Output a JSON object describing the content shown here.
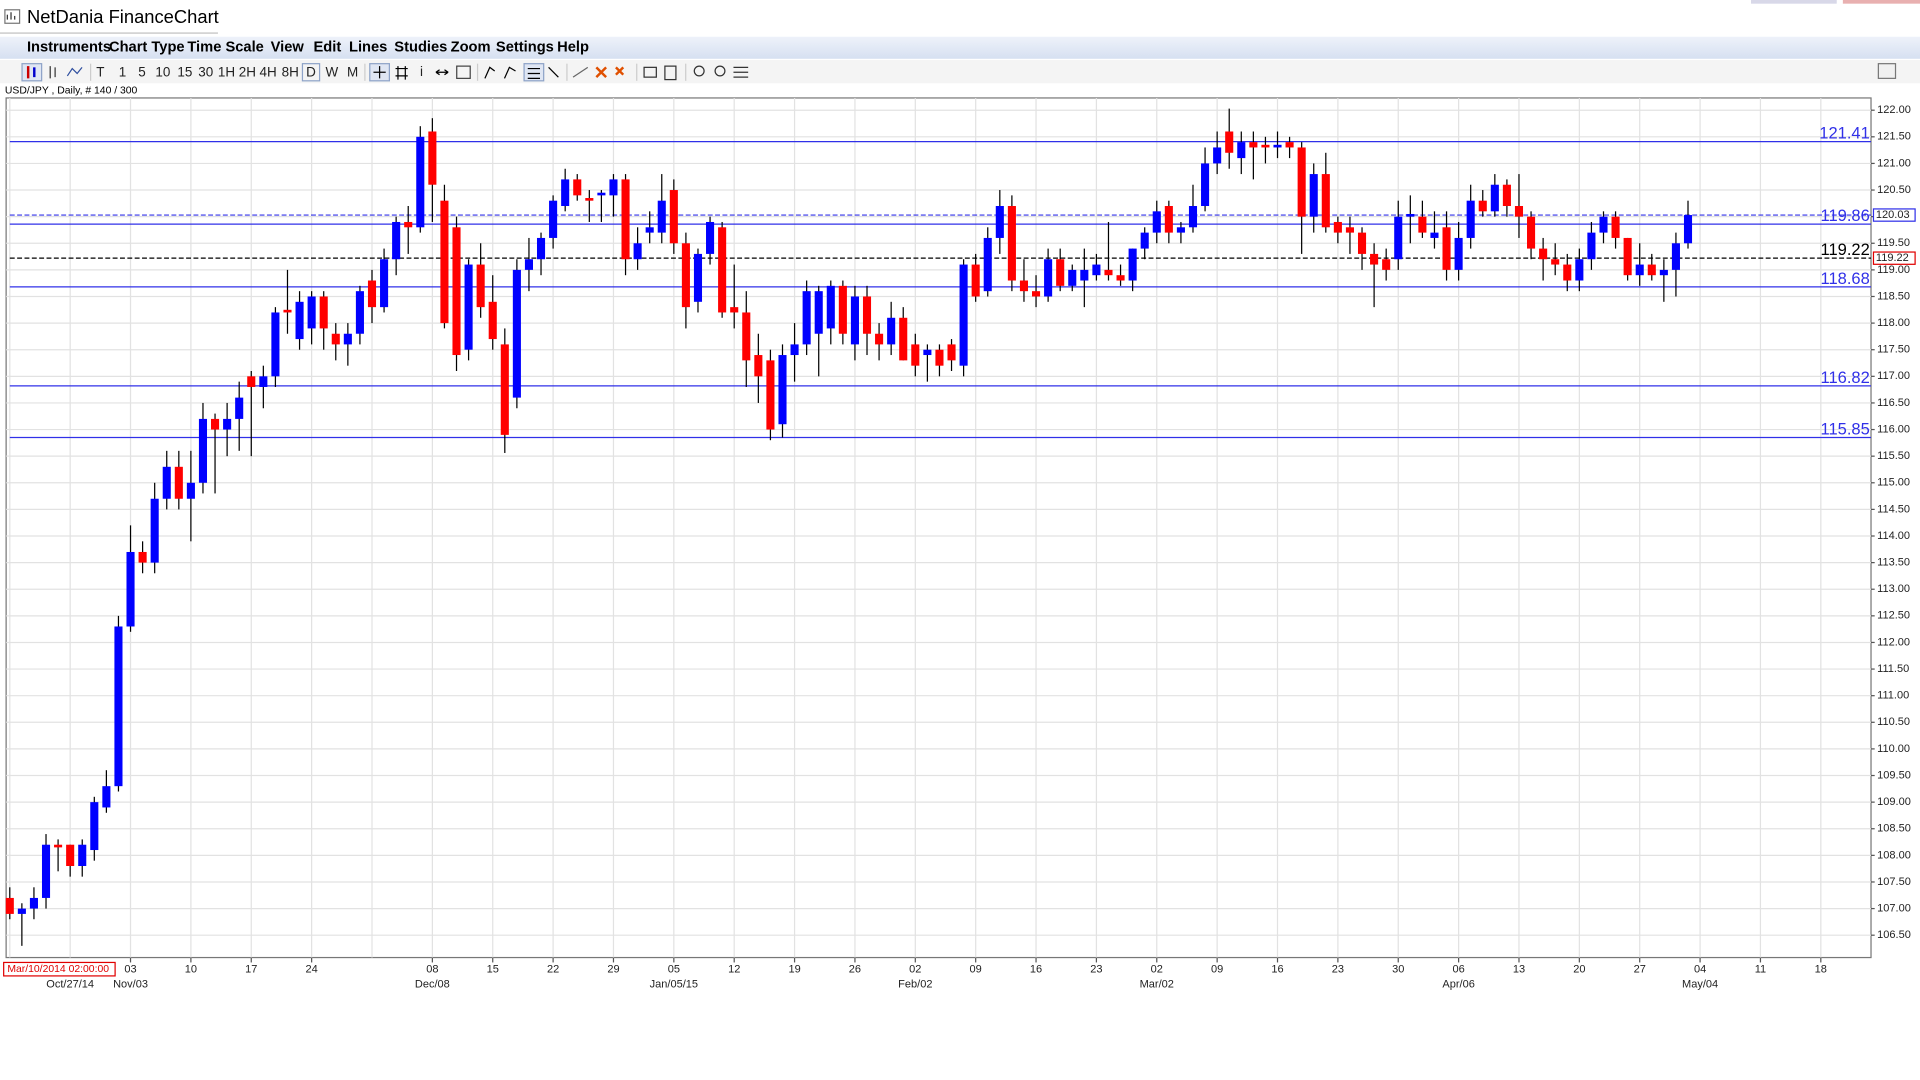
{
  "window": {
    "title": "NetDania FinanceChart"
  },
  "menu": [
    "Instruments",
    "Chart Type",
    "Time Scale",
    "View",
    "Edit",
    "Lines",
    "Studies",
    "Zoom",
    "Settings",
    "Help"
  ],
  "toolbar": {
    "buttons": [
      "T",
      "1",
      "5",
      "10",
      "15",
      "30",
      "1H",
      "2H",
      "4H",
      "8H",
      "D",
      "W",
      "M"
    ]
  },
  "chart_data": {
    "type": "candlestick",
    "info": "USD/JPY , Daily, # 140 / 300",
    "cursor_time": "Mar/10/2014 02:00:00",
    "categories": [
      null,
      null,
      null,
      null,
      null,
      null,
      null,
      null,
      null,
      null,
      "03",
      null,
      null,
      null,
      null,
      "10",
      null,
      null,
      null,
      null,
      "17",
      null,
      null,
      null,
      null,
      "24",
      null,
      null,
      null,
      null,
      null,
      null,
      null,
      null,
      null,
      "08",
      null,
      null,
      null,
      null,
      "15",
      null,
      null,
      null,
      null,
      "22",
      null,
      null,
      null,
      null,
      "29",
      null,
      null,
      null,
      null,
      "05",
      null,
      null,
      null,
      null,
      "12",
      null,
      null,
      null,
      null,
      "19",
      null,
      null,
      null,
      null,
      "26",
      null,
      null,
      null,
      null,
      "02",
      null,
      null,
      null,
      null,
      "09",
      null,
      null,
      null,
      null,
      "16",
      null,
      null,
      null,
      null,
      "23",
      null,
      null,
      null,
      null,
      "02",
      null,
      null,
      null,
      null,
      "09",
      null,
      null,
      null,
      null,
      "16",
      null,
      null,
      null,
      null,
      "23",
      null,
      null,
      null,
      null,
      "30",
      null,
      null,
      null,
      null,
      "06",
      null,
      null,
      null,
      null,
      "13",
      null,
      null,
      null,
      null,
      "20",
      null,
      null,
      null,
      null,
      "27",
      null,
      null,
      null,
      null,
      "04",
      null,
      null,
      null,
      null,
      "11",
      null,
      null,
      null,
      null,
      "18",
      null,
      null,
      null,
      null
    ],
    "categories_2": [
      null,
      null,
      null,
      null,
      null,
      "Oct/27/14",
      null,
      null,
      null,
      null,
      "Nov/03",
      null,
      null,
      null,
      null,
      null,
      null,
      null,
      null,
      null,
      null,
      null,
      null,
      null,
      null,
      null,
      null,
      null,
      null,
      null,
      null,
      null,
      null,
      null,
      null,
      "Dec/08",
      null,
      null,
      null,
      null,
      null,
      null,
      null,
      null,
      null,
      null,
      null,
      null,
      null,
      null,
      null,
      null,
      null,
      null,
      null,
      "Jan/05/15",
      null,
      null,
      null,
      null,
      null,
      null,
      null,
      null,
      null,
      null,
      null,
      null,
      null,
      null,
      null,
      null,
      null,
      null,
      null,
      "Feb/02",
      null,
      null,
      null,
      null,
      null,
      null,
      null,
      null,
      null,
      null,
      null,
      null,
      null,
      null,
      null,
      null,
      null,
      null,
      null,
      "Mar/02",
      null,
      null,
      null,
      null,
      null,
      null,
      null,
      null,
      null,
      null,
      null,
      null,
      null,
      null,
      null,
      null,
      null,
      null,
      null,
      null,
      null,
      null,
      null,
      null,
      "Apr/06",
      null,
      null,
      null,
      null,
      null,
      null,
      null,
      null,
      null,
      null,
      null,
      null,
      null,
      null,
      null,
      null,
      null,
      null,
      null,
      "May/04",
      null,
      null,
      null,
      null,
      null,
      null,
      null,
      null,
      null,
      null,
      null,
      null,
      null,
      null
    ],
    "open": [
      107.2,
      106.9,
      107.0,
      107.2,
      108.2,
      108.2,
      107.8,
      108.1,
      108.9,
      109.3,
      112.3,
      113.7,
      113.5,
      114.7,
      115.3,
      114.7,
      115.0,
      116.2,
      116.0,
      116.2,
      117.0,
      116.8,
      117.0,
      118.25,
      117.7,
      117.9,
      118.5,
      117.8,
      117.6,
      117.8,
      118.8,
      118.3,
      119.2,
      119.9,
      119.8,
      121.6,
      120.3,
      119.8,
      117.5,
      119.1,
      118.4,
      117.6,
      116.6,
      119.0,
      119.2,
      119.6,
      120.2,
      120.7,
      120.35,
      120.4,
      120.4,
      120.7,
      119.2,
      119.7,
      119.7,
      120.5,
      119.5,
      118.4,
      119.3,
      119.8,
      118.3,
      118.2,
      117.4,
      117.3,
      116.1,
      117.4,
      117.6,
      117.8,
      117.9,
      118.7,
      117.6,
      118.5,
      117.8,
      117.6,
      118.1,
      117.6,
      117.4,
      117.5,
      117.6,
      117.2,
      119.1,
      118.6,
      119.6,
      120.2,
      118.8,
      118.6,
      118.5,
      119.2,
      118.7,
      118.8,
      118.9,
      119.0,
      118.9,
      118.8,
      119.4,
      119.7,
      120.2,
      119.7,
      119.8,
      120.2,
      121.0,
      121.6,
      121.1,
      121.4,
      121.35,
      121.3,
      121.4,
      121.3,
      120.0,
      120.8,
      119.9,
      119.8,
      119.7,
      119.3,
      119.2,
      119.2,
      120.0,
      120.0,
      119.6,
      119.8,
      119.0,
      119.6,
      120.3,
      120.1,
      120.6,
      120.2,
      120.0,
      119.4,
      119.2,
      119.1,
      118.8,
      119.2,
      119.7,
      120.0,
      119.6,
      118.9,
      119.1,
      118.9,
      119.0,
      119.5,
      null,
      null,
      null,
      null,
      null,
      null,
      null,
      null,
      null,
      null,
      null,
      null,
      null,
      null,
      null
    ],
    "high": [
      107.4,
      107.1,
      107.4,
      108.4,
      108.3,
      108.2,
      108.3,
      109.1,
      109.6,
      112.5,
      114.2,
      113.9,
      115.0,
      115.6,
      115.6,
      115.6,
      116.5,
      116.3,
      116.5,
      116.9,
      117.1,
      117.2,
      118.3,
      119.0,
      118.6,
      118.6,
      118.6,
      118.0,
      118.0,
      118.7,
      119.0,
      119.4,
      120.0,
      120.2,
      121.7,
      121.85,
      120.6,
      120.0,
      119.2,
      119.5,
      118.9,
      117.9,
      119.2,
      119.6,
      119.7,
      120.4,
      120.9,
      120.8,
      120.5,
      120.5,
      120.8,
      120.8,
      119.8,
      120.1,
      120.8,
      120.7,
      119.7,
      119.4,
      120.0,
      119.9,
      119.1,
      118.6,
      117.8,
      117.5,
      117.6,
      118.0,
      118.8,
      118.7,
      118.8,
      118.8,
      118.7,
      118.7,
      118.0,
      118.4,
      118.3,
      117.8,
      117.6,
      117.6,
      117.7,
      119.2,
      119.3,
      119.8,
      120.5,
      120.4,
      119.2,
      118.9,
      119.4,
      119.4,
      119.1,
      119.4,
      119.3,
      119.9,
      119.1,
      119.4,
      119.8,
      120.3,
      120.3,
      119.9,
      120.6,
      121.3,
      121.6,
      122.03,
      121.6,
      121.6,
      121.5,
      121.6,
      121.5,
      121.4,
      121.0,
      121.2,
      120.0,
      120.0,
      119.8,
      119.5,
      119.4,
      120.3,
      120.4,
      120.3,
      120.1,
      120.1,
      119.9,
      120.6,
      120.5,
      120.8,
      120.7,
      120.8,
      120.1,
      119.6,
      119.5,
      119.3,
      119.4,
      119.9,
      120.1,
      120.1,
      119.6,
      119.5,
      119.3,
      119.2,
      119.7,
      120.3,
      null,
      null,
      null,
      null,
      null,
      null,
      null,
      null,
      null,
      null,
      null,
      null,
      null,
      null,
      null
    ],
    "low": [
      106.8,
      106.3,
      106.8,
      107.0,
      107.7,
      107.6,
      107.6,
      107.9,
      108.8,
      109.2,
      112.2,
      113.3,
      113.3,
      114.5,
      114.5,
      113.9,
      114.8,
      114.8,
      115.5,
      115.6,
      115.5,
      116.4,
      116.8,
      117.8,
      117.5,
      117.6,
      117.5,
      117.3,
      117.2,
      117.6,
      118.0,
      118.2,
      118.9,
      119.3,
      119.7,
      119.9,
      117.9,
      117.1,
      117.3,
      118.1,
      117.5,
      115.56,
      116.4,
      118.6,
      118.9,
      119.4,
      120.1,
      120.3,
      119.9,
      119.9,
      120.0,
      118.9,
      119.0,
      119.5,
      119.5,
      119.3,
      117.9,
      118.2,
      119.1,
      118.1,
      117.9,
      116.8,
      116.5,
      115.8,
      115.85,
      116.9,
      117.4,
      117.0,
      117.6,
      117.6,
      117.3,
      117.4,
      117.3,
      117.4,
      117.3,
      117.0,
      116.9,
      117.0,
      117.1,
      117.0,
      118.4,
      118.5,
      119.3,
      118.6,
      118.4,
      118.3,
      118.4,
      118.6,
      118.6,
      118.3,
      118.8,
      118.8,
      118.7,
      118.6,
      119.2,
      119.5,
      119.5,
      119.5,
      119.7,
      120.1,
      120.8,
      120.9,
      120.8,
      120.7,
      121.0,
      121.1,
      121.1,
      119.3,
      119.7,
      119.7,
      119.5,
      119.3,
      119.0,
      118.3,
      118.8,
      119.0,
      119.5,
      119.6,
      119.4,
      118.8,
      118.8,
      119.4,
      120.0,
      120.0,
      120.0,
      119.6,
      119.2,
      118.8,
      118.9,
      118.6,
      118.6,
      119.0,
      119.5,
      119.4,
      118.8,
      118.7,
      118.8,
      118.4,
      118.5,
      119.4,
      null,
      null,
      null,
      null,
      null,
      null,
      null,
      null,
      null,
      null,
      null,
      null,
      null,
      null,
      null
    ],
    "close": [
      106.9,
      107.0,
      107.2,
      108.2,
      108.15,
      107.8,
      108.2,
      109.0,
      109.3,
      112.3,
      113.7,
      113.5,
      114.7,
      115.3,
      114.7,
      115.0,
      116.2,
      116.0,
      116.2,
      116.6,
      116.8,
      117.0,
      118.2,
      118.2,
      118.4,
      118.5,
      117.9,
      117.6,
      117.8,
      118.6,
      118.3,
      119.2,
      119.9,
      119.8,
      121.5,
      120.6,
      118.0,
      117.4,
      119.1,
      118.3,
      117.7,
      115.9,
      119.0,
      119.2,
      119.6,
      120.3,
      120.7,
      120.4,
      120.3,
      120.45,
      120.7,
      119.2,
      119.5,
      119.8,
      120.3,
      119.5,
      118.3,
      119.3,
      119.9,
      118.2,
      118.2,
      117.3,
      117.0,
      116.0,
      117.4,
      117.6,
      118.6,
      118.6,
      118.7,
      117.8,
      118.5,
      117.8,
      117.6,
      118.1,
      117.3,
      117.2,
      117.5,
      117.2,
      117.3,
      119.1,
      118.5,
      119.6,
      120.2,
      118.8,
      118.6,
      118.5,
      119.2,
      118.7,
      119.0,
      119.0,
      119.1,
      118.9,
      118.8,
      119.4,
      119.7,
      120.1,
      119.7,
      119.8,
      120.2,
      121.0,
      121.3,
      121.2,
      121.4,
      121.3,
      121.3,
      121.35,
      121.3,
      120.0,
      120.8,
      119.8,
      119.7,
      119.7,
      119.3,
      119.1,
      119.0,
      120.0,
      120.05,
      119.7,
      119.7,
      119.0,
      119.6,
      120.3,
      120.1,
      120.6,
      120.2,
      120.0,
      119.4,
      119.2,
      119.1,
      118.8,
      119.2,
      119.7,
      120.0,
      119.6,
      118.9,
      119.1,
      118.9,
      119.0,
      119.5,
      120.03,
      null,
      null,
      null,
      null,
      null,
      null,
      null,
      null,
      null,
      null,
      null,
      null,
      null,
      null,
      null
    ],
    "up_color": "#0000ff",
    "down_color": "#ff0000",
    "ylim": [
      106.08,
      122.23
    ],
    "yticks": [
      {
        "value": 106.5,
        "label": "106.50"
      },
      {
        "value": 107,
        "label": "107.00"
      },
      {
        "value": 107.5,
        "label": "107.50"
      },
      {
        "value": 108,
        "label": "108.00"
      },
      {
        "value": 108.5,
        "label": "108.50"
      },
      {
        "value": 109,
        "label": "109.00"
      },
      {
        "value": 109.5,
        "label": "109.50"
      },
      {
        "value": 110,
        "label": "110.00"
      },
      {
        "value": 110.5,
        "label": "110.50"
      },
      {
        "value": 111,
        "label": "111.00"
      },
      {
        "value": 111.5,
        "label": "111.50"
      },
      {
        "value": 112,
        "label": "112.00"
      },
      {
        "value": 112.5,
        "label": "112.50"
      },
      {
        "value": 113,
        "label": "113.00"
      },
      {
        "value": 113.5,
        "label": "113.50"
      },
      {
        "value": 114,
        "label": "114.00"
      },
      {
        "value": 114.5,
        "label": "114.50"
      },
      {
        "value": 115,
        "label": "115.00"
      },
      {
        "value": 115.5,
        "label": "115.50"
      },
      {
        "value": 116,
        "label": "116.00"
      },
      {
        "value": 116.5,
        "label": "116.50"
      },
      {
        "value": 117,
        "label": "117.00"
      },
      {
        "value": 117.5,
        "label": "117.50"
      },
      {
        "value": 118,
        "label": "118.00"
      },
      {
        "value": 118.5,
        "label": "118.50"
      },
      {
        "value": 119,
        "label": "119.00"
      },
      {
        "value": 119.5,
        "label": "119.50"
      },
      {
        "value": 120,
        "label": "120.00"
      },
      {
        "value": 120.5,
        "label": "120.50"
      },
      {
        "value": 121,
        "label": "121.00"
      },
      {
        "value": 121.5,
        "label": "121.50"
      },
      {
        "value": 122,
        "label": "122.00"
      }
    ],
    "grid": true,
    "levels": [
      {
        "value": 121.41,
        "color": "#3030e8"
      },
      {
        "value": 119.86,
        "color": "#3030e8"
      },
      {
        "value": 118.68,
        "color": "#3030e8"
      },
      {
        "value": 116.82,
        "color": "#3030e8"
      },
      {
        "value": 115.85,
        "color": "#3030e8"
      }
    ],
    "last_price": {
      "value": 120.03,
      "color": "#3030e8"
    },
    "marker": {
      "value": 119.22,
      "color": "#000000"
    }
  }
}
